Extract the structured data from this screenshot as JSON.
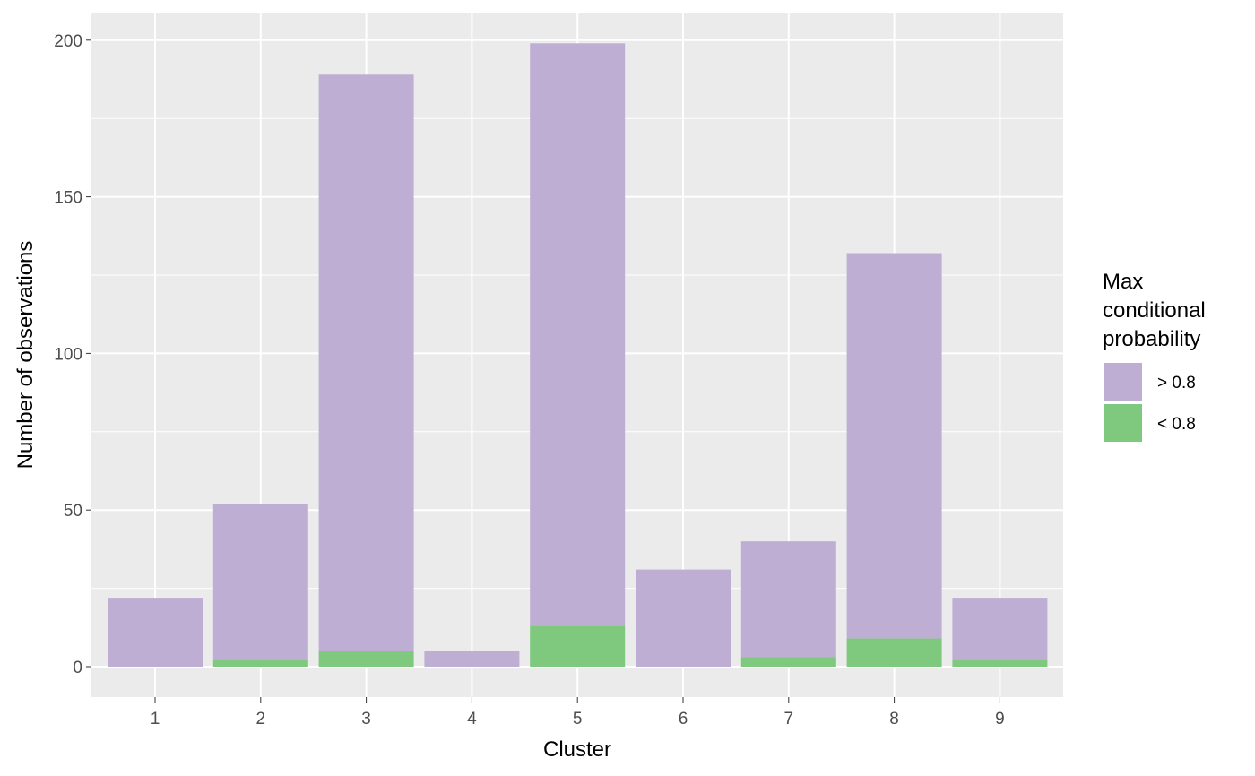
{
  "chart_data": {
    "type": "bar",
    "stacked": true,
    "xlabel": "Cluster",
    "ylabel": "Number of observations",
    "categories": [
      "1",
      "2",
      "3",
      "4",
      "5",
      "6",
      "7",
      "8",
      "9"
    ],
    "ylim": [
      -10,
      208
    ],
    "yticks": [
      0,
      50,
      100,
      150,
      200
    ],
    "grid": true,
    "legend": {
      "title": [
        "Max",
        "conditional",
        "probability"
      ],
      "position": "right",
      "entries": [
        {
          "label": "> 0.8",
          "color": "#bfaed4"
        },
        {
          "label": "< 0.8",
          "color": "#7fc97f"
        }
      ]
    },
    "series": [
      {
        "name": "< 0.8",
        "color": "#7fc97f",
        "values": [
          0,
          2,
          5,
          0,
          13,
          0,
          3,
          9,
          2
        ]
      },
      {
        "name": "> 0.8",
        "color": "#bfaed4",
        "values": [
          22,
          50,
          184,
          5,
          186,
          31,
          37,
          123,
          20
        ]
      }
    ],
    "panel_background": "#ebebeb",
    "grid_color": "#ffffff"
  }
}
